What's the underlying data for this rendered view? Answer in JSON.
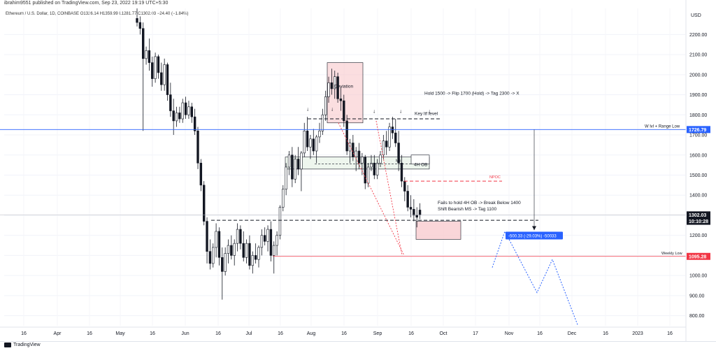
{
  "header": {
    "published_by": "ibrahim9551 published on TradingView.com, Sep 23, 2022 19:19 UTC+5:30",
    "symbol_line": "Ethereum / U.S. Dollar, 1D, COINBASE  O1326.14  H1359.99  L1281.77  C1302.03  −24.40 (−1.84%)"
  },
  "footer": {
    "brand": "TradingView"
  },
  "colors": {
    "up": "#131722",
    "down": "#131722",
    "range_line": "#2962ff",
    "weekly_low": "#f23645",
    "projection": "#2962ff",
    "box": "#f8c8cc",
    "ob_box": "#eef6ee"
  },
  "chart_data": {
    "type": "candlestick",
    "title": "",
    "xlabel": "",
    "ylabel": "USD",
    "ylim": [
      750,
      2330
    ],
    "y_ticks": [
      800,
      900,
      1000,
      1100,
      1200,
      1300,
      1400,
      1500,
      1600,
      1700,
      1800,
      1900,
      2000,
      2100,
      2200
    ],
    "y_tick_labels": [
      "800.00",
      "900.00",
      "1000.00",
      "1100.00",
      "1200.00",
      "1300.00",
      "1400.00",
      "1500.00",
      "1600.00",
      "1700.00",
      "1800.00",
      "1900.00",
      "2000.00",
      "2100.00",
      "2200.00"
    ],
    "x_tick_labels": [
      "16",
      "Apr",
      "16",
      "May",
      "16",
      "Jun",
      "16",
      "Jul",
      "16",
      "Aug",
      "16",
      "Sep",
      "16",
      "Oct",
      "17",
      "Nov",
      "16",
      "Dec",
      "16",
      "2023",
      "16"
    ],
    "price_labels": [
      {
        "text": "USD",
        "value": 2300
      },
      {
        "text": "1726.79",
        "value": 1726.79,
        "style": "blue"
      },
      {
        "text": "1302.03",
        "value": 1302.03,
        "style": "dark"
      },
      {
        "text": "10:10:28",
        "value": 1270,
        "style": "dark"
      },
      {
        "text": "1095.28",
        "value": 1095.28,
        "style": "red"
      }
    ],
    "levels": [
      {
        "name": "W lvl + Range Low",
        "value": 1726.79
      },
      {
        "name": "Weekly Low",
        "value": 1095.28
      },
      {
        "name": "Current",
        "value": 1302.03
      }
    ],
    "annotations": {
      "hold_plan": "Hold 1500   -> Flip 1700 (Hold) -> Tag 2300 -> X",
      "key_ltf": "Key ltf level",
      "ob": "4H OB",
      "npoc": "NPOC",
      "ms": "MS",
      "deviation": "Deviation",
      "break_note_1": "Fails to hold 4H OB -> Break Below 1400",
      "break_note_2": "Shift Bearish MS -> Tag 1100",
      "measure": "-500.33 (-29.03%) -50033",
      "w_lvl": "W lvl + Range Low",
      "weekly_low": "Weekly Low"
    },
    "candles": [
      {
        "o": 2280,
        "h": 2330,
        "l": 2240,
        "c": 2260
      },
      {
        "o": 2260,
        "h": 2290,
        "l": 2200,
        "c": 2230
      },
      {
        "o": 2230,
        "h": 2260,
        "l": 1720,
        "c": 2080
      },
      {
        "o": 2080,
        "h": 2140,
        "l": 2050,
        "c": 2120
      },
      {
        "o": 2120,
        "h": 2180,
        "l": 2020,
        "c": 2060
      },
      {
        "o": 2060,
        "h": 2090,
        "l": 1940,
        "c": 1980
      },
      {
        "o": 1980,
        "h": 2110,
        "l": 1960,
        "c": 2090
      },
      {
        "o": 2090,
        "h": 2100,
        "l": 1980,
        "c": 2010
      },
      {
        "o": 2010,
        "h": 2060,
        "l": 1920,
        "c": 1950
      },
      {
        "o": 1950,
        "h": 2080,
        "l": 1920,
        "c": 2050
      },
      {
        "o": 2050,
        "h": 2060,
        "l": 1870,
        "c": 1900
      },
      {
        "o": 1900,
        "h": 1960,
        "l": 1790,
        "c": 1820
      },
      {
        "o": 1820,
        "h": 1880,
        "l": 1700,
        "c": 1770
      },
      {
        "o": 1770,
        "h": 1840,
        "l": 1740,
        "c": 1810
      },
      {
        "o": 1810,
        "h": 1840,
        "l": 1760,
        "c": 1780
      },
      {
        "o": 1780,
        "h": 1880,
        "l": 1760,
        "c": 1860
      },
      {
        "o": 1860,
        "h": 1890,
        "l": 1780,
        "c": 1800
      },
      {
        "o": 1800,
        "h": 1870,
        "l": 1780,
        "c": 1840
      },
      {
        "o": 1840,
        "h": 1860,
        "l": 1760,
        "c": 1790
      },
      {
        "o": 1790,
        "h": 1830,
        "l": 1700,
        "c": 1720
      },
      {
        "o": 1720,
        "h": 1740,
        "l": 1530,
        "c": 1560
      },
      {
        "o": 1560,
        "h": 1580,
        "l": 1420,
        "c": 1450
      },
      {
        "o": 1450,
        "h": 1470,
        "l": 1250,
        "c": 1270
      },
      {
        "o": 1270,
        "h": 1290,
        "l": 1060,
        "c": 1120
      },
      {
        "o": 1120,
        "h": 1180,
        "l": 1030,
        "c": 1060
      },
      {
        "o": 1060,
        "h": 1160,
        "l": 1040,
        "c": 1140
      },
      {
        "o": 1140,
        "h": 1260,
        "l": 1090,
        "c": 1220
      },
      {
        "o": 1220,
        "h": 1240,
        "l": 1050,
        "c": 1090
      },
      {
        "o": 1090,
        "h": 1140,
        "l": 880,
        "c": 1020
      },
      {
        "o": 1020,
        "h": 1140,
        "l": 1000,
        "c": 1110
      },
      {
        "o": 1110,
        "h": 1180,
        "l": 1060,
        "c": 1150
      },
      {
        "o": 1150,
        "h": 1200,
        "l": 1080,
        "c": 1100
      },
      {
        "o": 1100,
        "h": 1180,
        "l": 1050,
        "c": 1160
      },
      {
        "o": 1160,
        "h": 1260,
        "l": 1120,
        "c": 1230
      },
      {
        "o": 1230,
        "h": 1250,
        "l": 1130,
        "c": 1160
      },
      {
        "o": 1160,
        "h": 1220,
        "l": 1070,
        "c": 1090
      },
      {
        "o": 1090,
        "h": 1180,
        "l": 1060,
        "c": 1160
      },
      {
        "o": 1160,
        "h": 1200,
        "l": 1030,
        "c": 1050
      },
      {
        "o": 1050,
        "h": 1120,
        "l": 1010,
        "c": 1100
      },
      {
        "o": 1100,
        "h": 1160,
        "l": 1060,
        "c": 1080
      },
      {
        "o": 1080,
        "h": 1150,
        "l": 1040,
        "c": 1140
      },
      {
        "o": 1140,
        "h": 1230,
        "l": 1100,
        "c": 1200
      },
      {
        "o": 1200,
        "h": 1240,
        "l": 1150,
        "c": 1170
      },
      {
        "o": 1170,
        "h": 1250,
        "l": 1120,
        "c": 1230
      },
      {
        "o": 1230,
        "h": 1270,
        "l": 1070,
        "c": 1100
      },
      {
        "o": 1100,
        "h": 1170,
        "l": 1010,
        "c": 1150
      },
      {
        "o": 1150,
        "h": 1220,
        "l": 1100,
        "c": 1200
      },
      {
        "o": 1200,
        "h": 1350,
        "l": 1180,
        "c": 1340
      },
      {
        "o": 1340,
        "h": 1450,
        "l": 1320,
        "c": 1430
      },
      {
        "o": 1430,
        "h": 1560,
        "l": 1400,
        "c": 1540
      },
      {
        "o": 1540,
        "h": 1620,
        "l": 1500,
        "c": 1600
      },
      {
        "o": 1600,
        "h": 1640,
        "l": 1440,
        "c": 1480
      },
      {
        "o": 1480,
        "h": 1600,
        "l": 1460,
        "c": 1580
      },
      {
        "o": 1580,
        "h": 1640,
        "l": 1500,
        "c": 1530
      },
      {
        "o": 1530,
        "h": 1620,
        "l": 1420,
        "c": 1610
      },
      {
        "o": 1610,
        "h": 1760,
        "l": 1590,
        "c": 1720
      },
      {
        "o": 1720,
        "h": 1790,
        "l": 1620,
        "c": 1640
      },
      {
        "o": 1640,
        "h": 1700,
        "l": 1580,
        "c": 1680
      },
      {
        "o": 1680,
        "h": 1730,
        "l": 1600,
        "c": 1620
      },
      {
        "o": 1620,
        "h": 1700,
        "l": 1560,
        "c": 1690
      },
      {
        "o": 1690,
        "h": 1760,
        "l": 1660,
        "c": 1720
      },
      {
        "o": 1720,
        "h": 1830,
        "l": 1700,
        "c": 1800
      },
      {
        "o": 1800,
        "h": 1920,
        "l": 1770,
        "c": 1890
      },
      {
        "o": 1890,
        "h": 1990,
        "l": 1860,
        "c": 1960
      },
      {
        "o": 1960,
        "h": 2030,
        "l": 1900,
        "c": 1930
      },
      {
        "o": 1930,
        "h": 2020,
        "l": 1880,
        "c": 1990
      },
      {
        "o": 1990,
        "h": 2010,
        "l": 1860,
        "c": 1880
      },
      {
        "o": 1880,
        "h": 1940,
        "l": 1820,
        "c": 1870
      },
      {
        "o": 1870,
        "h": 1900,
        "l": 1740,
        "c": 1770
      },
      {
        "o": 1770,
        "h": 1800,
        "l": 1600,
        "c": 1620
      },
      {
        "o": 1620,
        "h": 1680,
        "l": 1560,
        "c": 1660
      },
      {
        "o": 1660,
        "h": 1700,
        "l": 1570,
        "c": 1590
      },
      {
        "o": 1590,
        "h": 1640,
        "l": 1520,
        "c": 1620
      },
      {
        "o": 1620,
        "h": 1660,
        "l": 1530,
        "c": 1560
      },
      {
        "o": 1560,
        "h": 1610,
        "l": 1500,
        "c": 1590
      },
      {
        "o": 1590,
        "h": 1600,
        "l": 1430,
        "c": 1460
      },
      {
        "o": 1460,
        "h": 1560,
        "l": 1440,
        "c": 1540
      },
      {
        "o": 1540,
        "h": 1600,
        "l": 1520,
        "c": 1560
      },
      {
        "o": 1560,
        "h": 1600,
        "l": 1480,
        "c": 1500
      },
      {
        "o": 1500,
        "h": 1580,
        "l": 1480,
        "c": 1560
      },
      {
        "o": 1560,
        "h": 1620,
        "l": 1540,
        "c": 1600
      },
      {
        "o": 1600,
        "h": 1700,
        "l": 1580,
        "c": 1670
      },
      {
        "o": 1670,
        "h": 1720,
        "l": 1600,
        "c": 1640
      },
      {
        "o": 1640,
        "h": 1760,
        "l": 1620,
        "c": 1740
      },
      {
        "o": 1740,
        "h": 1790,
        "l": 1680,
        "c": 1710
      },
      {
        "o": 1710,
        "h": 1780,
        "l": 1640,
        "c": 1660
      },
      {
        "o": 1660,
        "h": 1720,
        "l": 1520,
        "c": 1560
      },
      {
        "o": 1560,
        "h": 1600,
        "l": 1440,
        "c": 1470
      },
      {
        "o": 1470,
        "h": 1490,
        "l": 1370,
        "c": 1420
      },
      {
        "o": 1420,
        "h": 1450,
        "l": 1320,
        "c": 1340
      },
      {
        "o": 1340,
        "h": 1400,
        "l": 1290,
        "c": 1330
      },
      {
        "o": 1330,
        "h": 1380,
        "l": 1270,
        "c": 1300
      },
      {
        "o": 1300,
        "h": 1340,
        "l": 1240,
        "c": 1290
      },
      {
        "o": 1326.14,
        "h": 1359.99,
        "l": 1281.77,
        "c": 1302.03
      }
    ]
  }
}
